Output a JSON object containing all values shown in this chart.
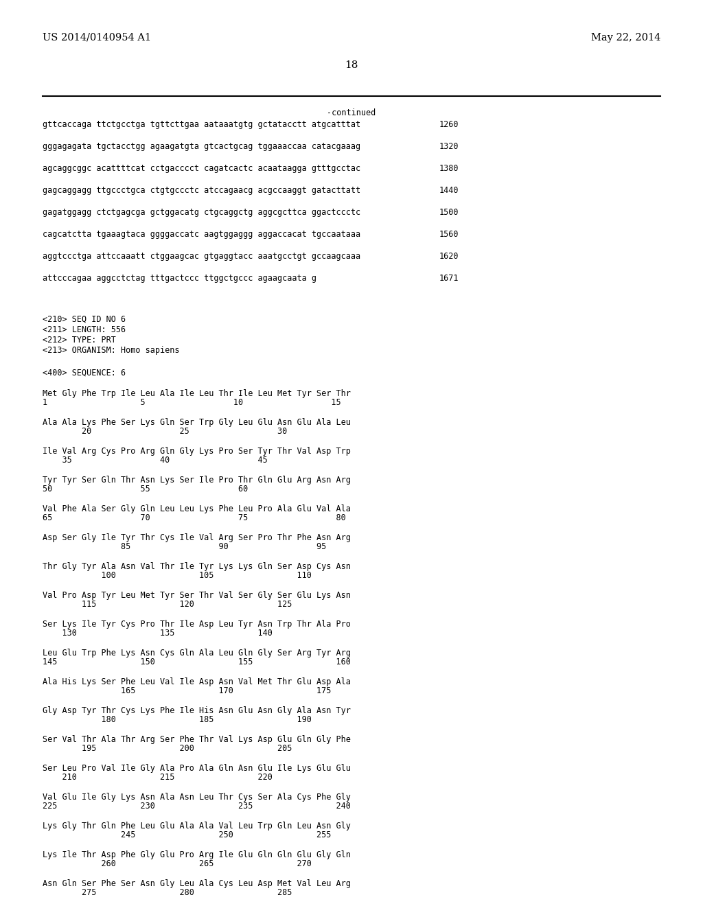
{
  "bg_color": "#ffffff",
  "header_left": "US 2014/0140954 A1",
  "header_right": "May 22, 2014",
  "page_number": "18",
  "continued_label": "-continued",
  "font_size_header": 10.5,
  "font_size_body": 8.5,
  "font_size_page": 11,
  "sequence_lines": [
    [
      "gttcaccaga ttctgcctga tgttcttgaa aataaatgtg gctatacctt atgcatttat",
      "1260"
    ],
    [
      "gggagagata tgctacctgg agaagatgta gtcactgcag tggaaaccaa catacgaaag",
      "1320"
    ],
    [
      "agcaggcggc acattttcat cctgacccct cagatcactc acaataagga gtttgcctac",
      "1380"
    ],
    [
      "gagcaggagg ttgccctgca ctgtgccctc atccagaacg acgccaaggt gatacttatt",
      "1440"
    ],
    [
      "gagatggagg ctctgagcga gctggacatg ctgcaggctg aggcgcttca ggactccctc",
      "1500"
    ],
    [
      "cagcatctta tgaaagtaca ggggaccatc aagtggaggg aggaccacat tgccaataaa",
      "1560"
    ],
    [
      "aggtccctga attccaaatt ctggaagcac gtgaggtacc aaatgcctgt gccaagcaaa",
      "1620"
    ],
    [
      "attcccagaa aggcctctag tttgactccc ttggctgccc agaagcaata g",
      "1671"
    ]
  ],
  "meta_lines": [
    "<210> SEQ ID NO 6",
    "<211> LENGTH: 556",
    "<212> TYPE: PRT",
    "<213> ORGANISM: Homo sapiens"
  ],
  "sequence_label": "<400> SEQUENCE: 6",
  "protein_blocks": [
    {
      "aa_line": "Met Gly Phe Trp Ile Leu Ala Ile Leu Thr Ile Leu Met Tyr Ser Thr",
      "num_line": "1                   5                  10                  15"
    },
    {
      "aa_line": "Ala Ala Lys Phe Ser Lys Gln Ser Trp Gly Leu Glu Asn Glu Ala Leu",
      "num_line": "        20                  25                  30"
    },
    {
      "aa_line": "Ile Val Arg Cys Pro Arg Gln Gly Lys Pro Ser Tyr Thr Val Asp Trp",
      "num_line": "    35                  40                  45"
    },
    {
      "aa_line": "Tyr Tyr Ser Gln Thr Asn Lys Ser Ile Pro Thr Gln Glu Arg Asn Arg",
      "num_line": "50                  55                  60"
    },
    {
      "aa_line": "Val Phe Ala Ser Gly Gln Leu Leu Lys Phe Leu Pro Ala Glu Val Ala",
      "num_line": "65                  70                  75                  80"
    },
    {
      "aa_line": "Asp Ser Gly Ile Tyr Thr Cys Ile Val Arg Ser Pro Thr Phe Asn Arg",
      "num_line": "                85                  90                  95"
    },
    {
      "aa_line": "Thr Gly Tyr Ala Asn Val Thr Ile Tyr Lys Lys Gln Ser Asp Cys Asn",
      "num_line": "            100                 105                 110"
    },
    {
      "aa_line": "Val Pro Asp Tyr Leu Met Tyr Ser Thr Val Ser Gly Ser Glu Lys Asn",
      "num_line": "        115                 120                 125"
    },
    {
      "aa_line": "Ser Lys Ile Tyr Cys Pro Thr Ile Asp Leu Tyr Asn Trp Thr Ala Pro",
      "num_line": "    130                 135                 140"
    },
    {
      "aa_line": "Leu Glu Trp Phe Lys Asn Cys Gln Ala Leu Gln Gly Ser Arg Tyr Arg",
      "num_line": "145                 150                 155                 160"
    },
    {
      "aa_line": "Ala His Lys Ser Phe Leu Val Ile Asp Asn Val Met Thr Glu Asp Ala",
      "num_line": "                165                 170                 175"
    },
    {
      "aa_line": "Gly Asp Tyr Thr Cys Lys Phe Ile His Asn Glu Asn Gly Ala Asn Tyr",
      "num_line": "            180                 185                 190"
    },
    {
      "aa_line": "Ser Val Thr Ala Thr Arg Ser Phe Thr Val Lys Asp Glu Gln Gly Phe",
      "num_line": "        195                 200                 205"
    },
    {
      "aa_line": "Ser Leu Pro Val Ile Gly Ala Pro Ala Gln Asn Glu Ile Lys Glu Glu",
      "num_line": "    210                 215                 220"
    },
    {
      "aa_line": "Val Glu Ile Gly Lys Asn Ala Asn Leu Thr Cys Ser Ala Cys Phe Gly",
      "num_line": "225                 230                 235                 240"
    },
    {
      "aa_line": "Lys Gly Thr Gln Phe Leu Glu Ala Ala Val Leu Trp Gln Leu Asn Gly",
      "num_line": "                245                 250                 255"
    },
    {
      "aa_line": "Lys Ile Thr Asp Phe Gly Glu Pro Arg Ile Glu Gln Gln Glu Gly Gln",
      "num_line": "            260                 265                 270"
    },
    {
      "aa_line": "Asn Gln Ser Phe Ser Asn Gly Leu Ala Cys Leu Asp Met Val Leu Arg",
      "num_line": "        275                 280                 285"
    }
  ]
}
